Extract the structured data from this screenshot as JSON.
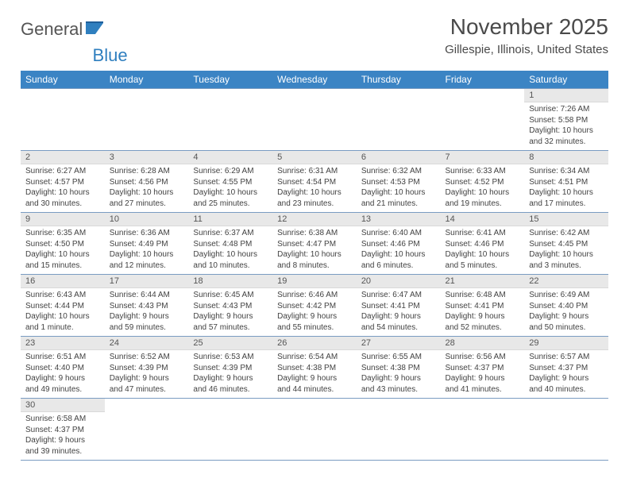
{
  "brand": {
    "part1": "General",
    "part2": "Blue"
  },
  "title": "November 2025",
  "location": "Gillespie, Illinois, United States",
  "colors": {
    "header_bg": "#3b84c4",
    "header_text": "#ffffff",
    "daynum_bg": "#e8e8e8",
    "cell_border": "#7a9cc2",
    "body_text": "#424242",
    "title_text": "#4a4a4a"
  },
  "weekdays": [
    "Sunday",
    "Monday",
    "Tuesday",
    "Wednesday",
    "Thursday",
    "Friday",
    "Saturday"
  ],
  "weeks": [
    [
      null,
      null,
      null,
      null,
      null,
      null,
      {
        "n": "1",
        "sr": "Sunrise: 7:26 AM",
        "ss": "Sunset: 5:58 PM",
        "dl": "Daylight: 10 hours and 32 minutes."
      }
    ],
    [
      {
        "n": "2",
        "sr": "Sunrise: 6:27 AM",
        "ss": "Sunset: 4:57 PM",
        "dl": "Daylight: 10 hours and 30 minutes."
      },
      {
        "n": "3",
        "sr": "Sunrise: 6:28 AM",
        "ss": "Sunset: 4:56 PM",
        "dl": "Daylight: 10 hours and 27 minutes."
      },
      {
        "n": "4",
        "sr": "Sunrise: 6:29 AM",
        "ss": "Sunset: 4:55 PM",
        "dl": "Daylight: 10 hours and 25 minutes."
      },
      {
        "n": "5",
        "sr": "Sunrise: 6:31 AM",
        "ss": "Sunset: 4:54 PM",
        "dl": "Daylight: 10 hours and 23 minutes."
      },
      {
        "n": "6",
        "sr": "Sunrise: 6:32 AM",
        "ss": "Sunset: 4:53 PM",
        "dl": "Daylight: 10 hours and 21 minutes."
      },
      {
        "n": "7",
        "sr": "Sunrise: 6:33 AM",
        "ss": "Sunset: 4:52 PM",
        "dl": "Daylight: 10 hours and 19 minutes."
      },
      {
        "n": "8",
        "sr": "Sunrise: 6:34 AM",
        "ss": "Sunset: 4:51 PM",
        "dl": "Daylight: 10 hours and 17 minutes."
      }
    ],
    [
      {
        "n": "9",
        "sr": "Sunrise: 6:35 AM",
        "ss": "Sunset: 4:50 PM",
        "dl": "Daylight: 10 hours and 15 minutes."
      },
      {
        "n": "10",
        "sr": "Sunrise: 6:36 AM",
        "ss": "Sunset: 4:49 PM",
        "dl": "Daylight: 10 hours and 12 minutes."
      },
      {
        "n": "11",
        "sr": "Sunrise: 6:37 AM",
        "ss": "Sunset: 4:48 PM",
        "dl": "Daylight: 10 hours and 10 minutes."
      },
      {
        "n": "12",
        "sr": "Sunrise: 6:38 AM",
        "ss": "Sunset: 4:47 PM",
        "dl": "Daylight: 10 hours and 8 minutes."
      },
      {
        "n": "13",
        "sr": "Sunrise: 6:40 AM",
        "ss": "Sunset: 4:46 PM",
        "dl": "Daylight: 10 hours and 6 minutes."
      },
      {
        "n": "14",
        "sr": "Sunrise: 6:41 AM",
        "ss": "Sunset: 4:46 PM",
        "dl": "Daylight: 10 hours and 5 minutes."
      },
      {
        "n": "15",
        "sr": "Sunrise: 6:42 AM",
        "ss": "Sunset: 4:45 PM",
        "dl": "Daylight: 10 hours and 3 minutes."
      }
    ],
    [
      {
        "n": "16",
        "sr": "Sunrise: 6:43 AM",
        "ss": "Sunset: 4:44 PM",
        "dl": "Daylight: 10 hours and 1 minute."
      },
      {
        "n": "17",
        "sr": "Sunrise: 6:44 AM",
        "ss": "Sunset: 4:43 PM",
        "dl": "Daylight: 9 hours and 59 minutes."
      },
      {
        "n": "18",
        "sr": "Sunrise: 6:45 AM",
        "ss": "Sunset: 4:43 PM",
        "dl": "Daylight: 9 hours and 57 minutes."
      },
      {
        "n": "19",
        "sr": "Sunrise: 6:46 AM",
        "ss": "Sunset: 4:42 PM",
        "dl": "Daylight: 9 hours and 55 minutes."
      },
      {
        "n": "20",
        "sr": "Sunrise: 6:47 AM",
        "ss": "Sunset: 4:41 PM",
        "dl": "Daylight: 9 hours and 54 minutes."
      },
      {
        "n": "21",
        "sr": "Sunrise: 6:48 AM",
        "ss": "Sunset: 4:41 PM",
        "dl": "Daylight: 9 hours and 52 minutes."
      },
      {
        "n": "22",
        "sr": "Sunrise: 6:49 AM",
        "ss": "Sunset: 4:40 PM",
        "dl": "Daylight: 9 hours and 50 minutes."
      }
    ],
    [
      {
        "n": "23",
        "sr": "Sunrise: 6:51 AM",
        "ss": "Sunset: 4:40 PM",
        "dl": "Daylight: 9 hours and 49 minutes."
      },
      {
        "n": "24",
        "sr": "Sunrise: 6:52 AM",
        "ss": "Sunset: 4:39 PM",
        "dl": "Daylight: 9 hours and 47 minutes."
      },
      {
        "n": "25",
        "sr": "Sunrise: 6:53 AM",
        "ss": "Sunset: 4:39 PM",
        "dl": "Daylight: 9 hours and 46 minutes."
      },
      {
        "n": "26",
        "sr": "Sunrise: 6:54 AM",
        "ss": "Sunset: 4:38 PM",
        "dl": "Daylight: 9 hours and 44 minutes."
      },
      {
        "n": "27",
        "sr": "Sunrise: 6:55 AM",
        "ss": "Sunset: 4:38 PM",
        "dl": "Daylight: 9 hours and 43 minutes."
      },
      {
        "n": "28",
        "sr": "Sunrise: 6:56 AM",
        "ss": "Sunset: 4:37 PM",
        "dl": "Daylight: 9 hours and 41 minutes."
      },
      {
        "n": "29",
        "sr": "Sunrise: 6:57 AM",
        "ss": "Sunset: 4:37 PM",
        "dl": "Daylight: 9 hours and 40 minutes."
      }
    ],
    [
      {
        "n": "30",
        "sr": "Sunrise: 6:58 AM",
        "ss": "Sunset: 4:37 PM",
        "dl": "Daylight: 9 hours and 39 minutes."
      },
      null,
      null,
      null,
      null,
      null,
      null
    ]
  ]
}
